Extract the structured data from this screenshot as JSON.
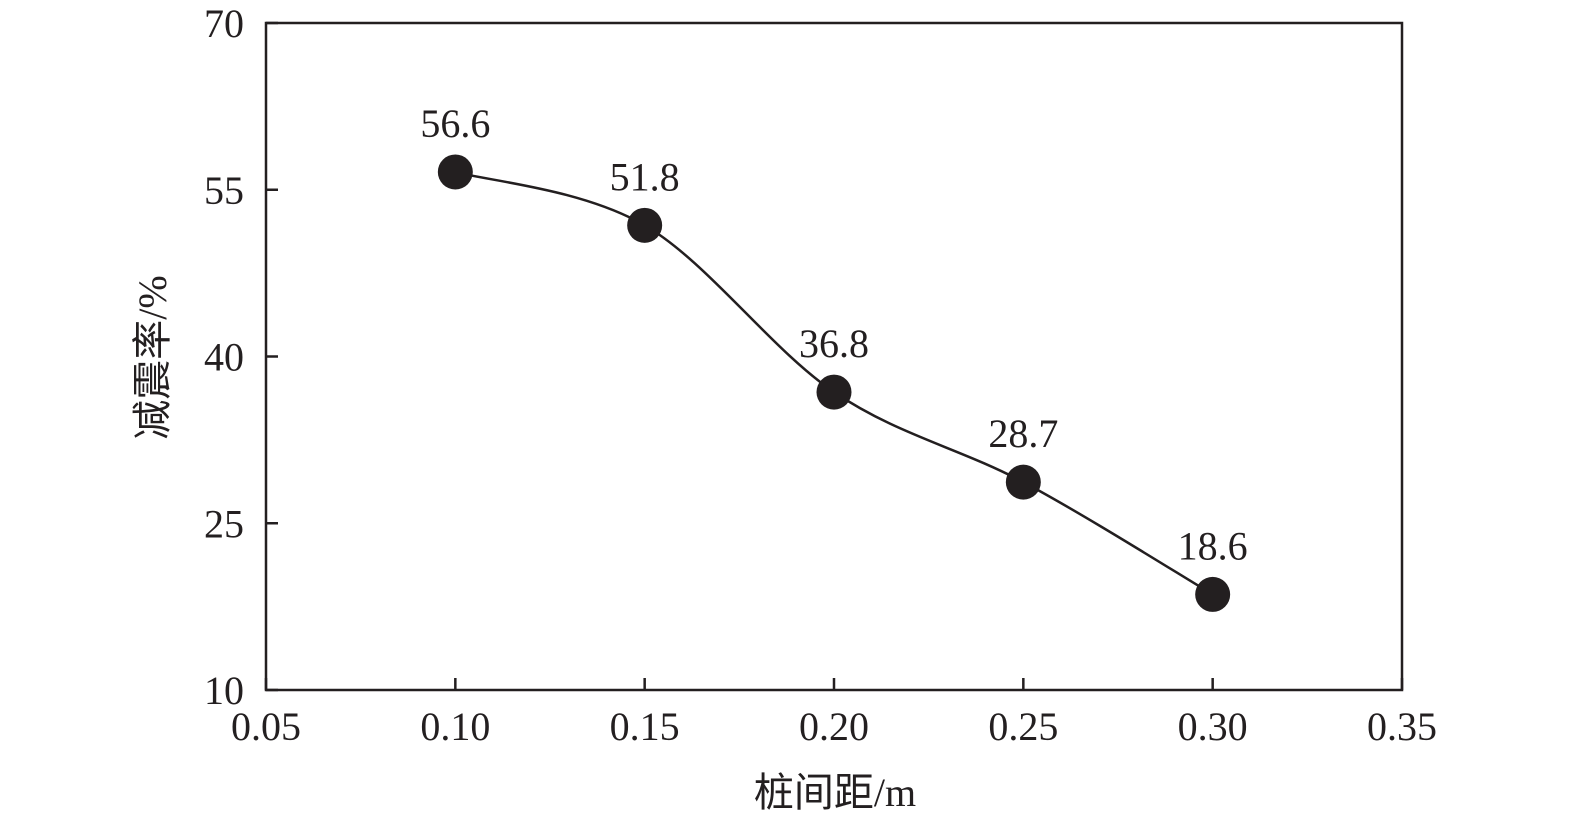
{
  "chart_data": {
    "type": "line",
    "xlabel": "桩间距/m",
    "ylabel": "减震率/%",
    "xlim": [
      0.05,
      0.35
    ],
    "ylim": [
      10,
      70
    ],
    "x_ticks": [
      0.05,
      0.1,
      0.15,
      0.2,
      0.25,
      0.3,
      0.35
    ],
    "x_tick_labels": [
      "0.05",
      "0.10",
      "0.15",
      "0.20",
      "0.25",
      "0.30",
      "0.35"
    ],
    "y_ticks": [
      10,
      25,
      40,
      55,
      70
    ],
    "y_tick_labels": [
      "10",
      "25",
      "40",
      "55",
      "70"
    ],
    "grid": false,
    "series": [
      {
        "x": [
          0.1,
          0.15,
          0.2,
          0.25,
          0.3
        ],
        "y": [
          56.6,
          51.8,
          36.8,
          28.7,
          18.6
        ],
        "labels": [
          "56.6",
          "51.8",
          "36.8",
          "28.7",
          "18.6"
        ],
        "marker": "filled-circle",
        "line": "smooth",
        "color": "#231f20"
      }
    ]
  }
}
